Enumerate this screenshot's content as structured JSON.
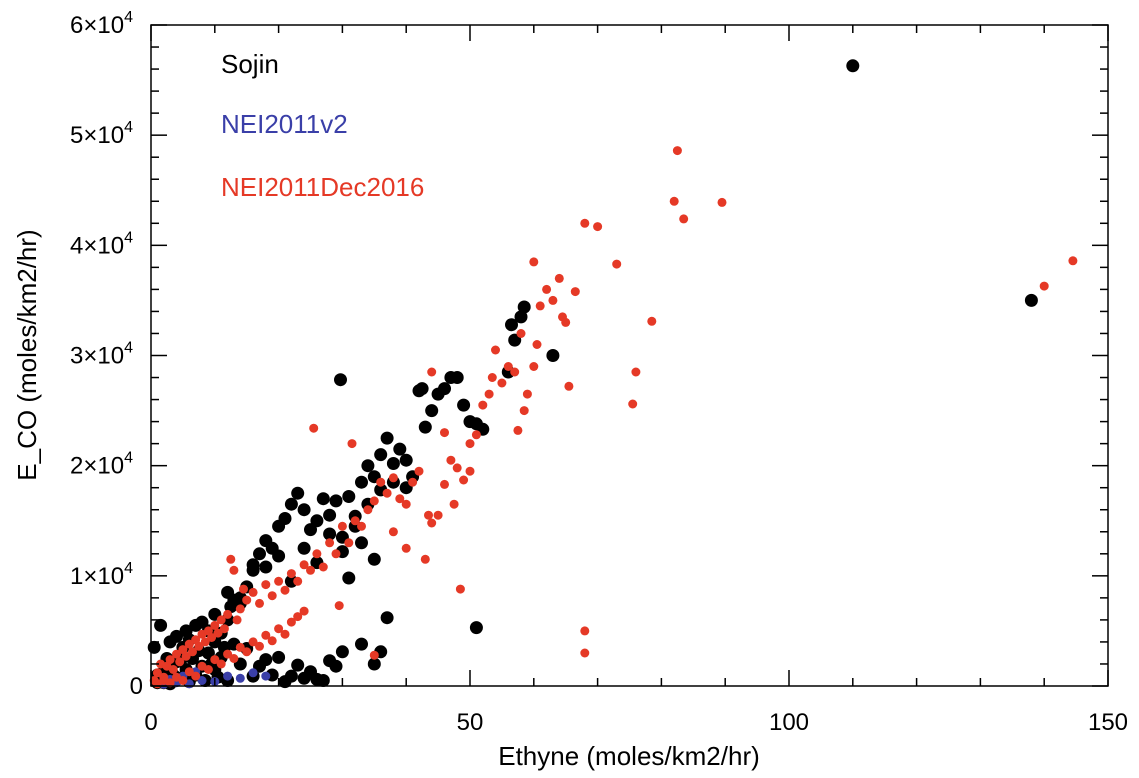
{
  "chart_data": {
    "type": "scatter",
    "title": "",
    "xlabel": "Ethyne (moles/km2/hr)",
    "ylabel": "E_CO (moles/km2/hr)",
    "xlim": [
      0,
      150
    ],
    "ylim": [
      0,
      60000
    ],
    "grid": false,
    "legend_placement": "top-left",
    "x_ticks": [
      {
        "value": 0,
        "label": "0"
      },
      {
        "value": 50,
        "label": "50"
      },
      {
        "value": 100,
        "label": "100"
      },
      {
        "value": 150,
        "label": "150"
      }
    ],
    "y_ticks": [
      {
        "value": 0,
        "mantissa": "0",
        "exp": ""
      },
      {
        "value": 10000,
        "mantissa": "1×10",
        "exp": "4"
      },
      {
        "value": 20000,
        "mantissa": "2×10",
        "exp": "4"
      },
      {
        "value": 30000,
        "mantissa": "3×10",
        "exp": "4"
      },
      {
        "value": 40000,
        "mantissa": "4×10",
        "exp": "4"
      },
      {
        "value": 50000,
        "mantissa": "5×10",
        "exp": "4"
      },
      {
        "value": 60000,
        "mantissa": "6×10",
        "exp": "4"
      }
    ],
    "series": [
      {
        "name": "Sojin",
        "color": "#000000",
        "marker": "large-dot",
        "points": [
          [
            0.5,
            3500
          ],
          [
            1.5,
            5500
          ],
          [
            2.5,
            2500
          ],
          [
            3,
            4000
          ],
          [
            4,
            4500
          ],
          [
            5,
            3500
          ],
          [
            5.5,
            5000
          ],
          [
            6,
            4200
          ],
          [
            7,
            5500
          ],
          [
            8,
            5800
          ],
          [
            9,
            5000
          ],
          [
            10,
            4000
          ],
          [
            11,
            4800
          ],
          [
            12,
            6000
          ],
          [
            12.5,
            7200
          ],
          [
            13,
            7800
          ],
          [
            14,
            8000
          ],
          [
            15,
            9000
          ],
          [
            16,
            10500
          ],
          [
            17,
            12000
          ],
          [
            18,
            13200
          ],
          [
            19,
            12500
          ],
          [
            20,
            14500
          ],
          [
            21,
            15200
          ],
          [
            22,
            16500
          ],
          [
            23,
            17500
          ],
          [
            24,
            16000
          ],
          [
            25,
            14200
          ],
          [
            26,
            15000
          ],
          [
            27,
            17000
          ],
          [
            28,
            15500
          ],
          [
            29,
            16800
          ],
          [
            29.7,
            27800
          ],
          [
            30,
            13500
          ],
          [
            31,
            17200
          ],
          [
            32,
            15400
          ],
          [
            33,
            18500
          ],
          [
            34,
            20000
          ],
          [
            35,
            19000
          ],
          [
            36,
            21000
          ],
          [
            37,
            22500
          ],
          [
            38,
            20200
          ],
          [
            39,
            21500
          ],
          [
            40,
            20500
          ],
          [
            41,
            19000
          ],
          [
            42,
            26800
          ],
          [
            42.5,
            27000
          ],
          [
            43,
            23500
          ],
          [
            44,
            25000
          ],
          [
            45,
            26500
          ],
          [
            46,
            27000
          ],
          [
            47,
            28000
          ],
          [
            48,
            28000
          ],
          [
            49,
            25500
          ],
          [
            50,
            24000
          ],
          [
            51,
            23800
          ],
          [
            52,
            23300
          ],
          [
            56,
            28500
          ],
          [
            56.5,
            32800
          ],
          [
            57,
            31400
          ],
          [
            58,
            33500
          ],
          [
            58.5,
            34400
          ],
          [
            63,
            30000
          ],
          [
            110,
            56300
          ],
          [
            138,
            35000
          ],
          [
            1,
            300
          ],
          [
            1,
            1000
          ],
          [
            1.5,
            500
          ],
          [
            2,
            1300
          ],
          [
            2,
            300
          ],
          [
            2.5,
            800
          ],
          [
            3,
            200
          ],
          [
            3,
            1700
          ],
          [
            3.5,
            1000
          ],
          [
            4,
            2200
          ],
          [
            4.5,
            700
          ],
          [
            5,
            2600
          ],
          [
            5.5,
            1500
          ],
          [
            6,
            400
          ],
          [
            6.5,
            2500
          ],
          [
            7,
            1000
          ],
          [
            7.5,
            3200
          ],
          [
            8,
            1800
          ],
          [
            8.5,
            500
          ],
          [
            9,
            3000
          ],
          [
            9.5,
            2000
          ],
          [
            10,
            1500
          ],
          [
            10.5,
            800
          ],
          [
            11,
            2600
          ],
          [
            11.5,
            3500
          ],
          [
            12,
            500
          ],
          [
            13,
            3800
          ],
          [
            14,
            2000
          ],
          [
            15,
            3400
          ],
          [
            16,
            900
          ],
          [
            17,
            1800
          ],
          [
            18,
            2400
          ],
          [
            19,
            1000
          ],
          [
            20,
            2600
          ],
          [
            21,
            400
          ],
          [
            22,
            900
          ],
          [
            23,
            1900
          ],
          [
            24,
            700
          ],
          [
            25,
            1300
          ],
          [
            26,
            600
          ],
          [
            27,
            500
          ],
          [
            28,
            2300
          ],
          [
            29,
            1800
          ],
          [
            30,
            3100
          ],
          [
            33,
            3800
          ],
          [
            35,
            2000
          ],
          [
            36,
            3100
          ],
          [
            37,
            6200
          ],
          [
            51,
            5300
          ],
          [
            10,
            6500
          ],
          [
            12,
            8500
          ],
          [
            14,
            7500
          ],
          [
            16,
            11000
          ],
          [
            18,
            10800
          ],
          [
            20,
            11800
          ],
          [
            22,
            9500
          ],
          [
            24,
            12500
          ],
          [
            26,
            11200
          ],
          [
            28,
            13800
          ],
          [
            30,
            12200
          ],
          [
            32,
            14500
          ],
          [
            34,
            16500
          ],
          [
            36,
            17800
          ],
          [
            38,
            18500
          ],
          [
            40,
            18000
          ],
          [
            35,
            11500
          ],
          [
            33,
            13000
          ],
          [
            31,
            9800
          ]
        ]
      },
      {
        "name": "NEI2011v2",
        "color": "#3a3fa8",
        "marker": "dot",
        "points": [
          [
            2,
            150
          ],
          [
            4,
            300
          ],
          [
            6,
            200
          ],
          [
            8,
            500
          ],
          [
            10,
            400
          ],
          [
            12,
            900
          ],
          [
            14,
            700
          ],
          [
            16,
            1200
          ],
          [
            18,
            900
          ],
          [
            3,
            600
          ],
          [
            5,
            900
          ],
          [
            7,
            1300
          ]
        ]
      },
      {
        "name": "NEI2011Dec2016",
        "color": "#e53926",
        "marker": "dot",
        "points": [
          [
            0.5,
            500
          ],
          [
            1,
            1200
          ],
          [
            1.5,
            2000
          ],
          [
            2,
            800
          ],
          [
            2.5,
            1800
          ],
          [
            3,
            2400
          ],
          [
            3.5,
            1500
          ],
          [
            4,
            2900
          ],
          [
            4.5,
            2200
          ],
          [
            5,
            3300
          ],
          [
            5.5,
            2700
          ],
          [
            6,
            3800
          ],
          [
            6.5,
            3100
          ],
          [
            7,
            4200
          ],
          [
            7.5,
            3600
          ],
          [
            8,
            4700
          ],
          [
            8.5,
            4000
          ],
          [
            9,
            5000
          ],
          [
            9.5,
            4400
          ],
          [
            10,
            5500
          ],
          [
            10.5,
            4800
          ],
          [
            11,
            6000
          ],
          [
            11.5,
            5200
          ],
          [
            12,
            6500
          ],
          [
            12.5,
            11500
          ],
          [
            13,
            10500
          ],
          [
            13.5,
            6000
          ],
          [
            14,
            7000
          ],
          [
            14.5,
            8800
          ],
          [
            15,
            7800
          ],
          [
            16,
            8500
          ],
          [
            17,
            7500
          ],
          [
            18,
            9200
          ],
          [
            19,
            8200
          ],
          [
            20,
            9500
          ],
          [
            21,
            8700
          ],
          [
            22,
            10200
          ],
          [
            23,
            9500
          ],
          [
            24,
            11000
          ],
          [
            25,
            10500
          ],
          [
            25.5,
            23400
          ],
          [
            26,
            12000
          ],
          [
            27,
            10800
          ],
          [
            28,
            13000
          ],
          [
            29,
            12000
          ],
          [
            29.5,
            7300
          ],
          [
            30,
            14500
          ],
          [
            31,
            13000
          ],
          [
            31.5,
            22000
          ],
          [
            32,
            15000
          ],
          [
            33,
            14500
          ],
          [
            34,
            16000
          ],
          [
            35,
            16800
          ],
          [
            36,
            18500
          ],
          [
            37,
            17500
          ],
          [
            38,
            18900
          ],
          [
            39,
            17000
          ],
          [
            40,
            16500
          ],
          [
            41,
            18500
          ],
          [
            42,
            19500
          ],
          [
            43,
            11500
          ],
          [
            43.5,
            15500
          ],
          [
            44,
            14800
          ],
          [
            45,
            15500
          ],
          [
            46,
            18300
          ],
          [
            47,
            20500
          ],
          [
            47.5,
            16500
          ],
          [
            48,
            19800
          ],
          [
            48.5,
            8800
          ],
          [
            49,
            18700
          ],
          [
            50,
            22000
          ],
          [
            51,
            22800
          ],
          [
            52,
            25500
          ],
          [
            53,
            26500
          ],
          [
            53.5,
            28000
          ],
          [
            54,
            30500
          ],
          [
            55,
            27500
          ],
          [
            56,
            29000
          ],
          [
            57,
            28500
          ],
          [
            58,
            32000
          ],
          [
            58.5,
            25000
          ],
          [
            59,
            26500
          ],
          [
            60,
            29000
          ],
          [
            60.5,
            31000
          ],
          [
            61,
            34500
          ],
          [
            62,
            36000
          ],
          [
            63,
            35000
          ],
          [
            64,
            37000
          ],
          [
            64.5,
            33500
          ],
          [
            65,
            33000
          ],
          [
            65.5,
            27200
          ],
          [
            66.5,
            35800
          ],
          [
            68,
            42000
          ],
          [
            70,
            41700
          ],
          [
            73,
            38300
          ],
          [
            75.5,
            25600
          ],
          [
            76,
            28500
          ],
          [
            78.5,
            33100
          ],
          [
            82,
            44000
          ],
          [
            82.5,
            48600
          ],
          [
            83.5,
            42400
          ],
          [
            89.5,
            43900
          ],
          [
            140,
            36300
          ],
          [
            144.5,
            38600
          ],
          [
            68,
            5000
          ],
          [
            68,
            3000
          ],
          [
            35,
            2800
          ],
          [
            60,
            38500
          ],
          [
            57.5,
            23200
          ],
          [
            50,
            19500
          ],
          [
            46,
            23000
          ],
          [
            44,
            28500
          ],
          [
            40,
            12500
          ],
          [
            38,
            14000
          ],
          [
            1,
            200
          ],
          [
            2,
            500
          ],
          [
            3,
            300
          ],
          [
            4,
            800
          ],
          [
            5,
            500
          ],
          [
            6,
            1300
          ],
          [
            7,
            900
          ],
          [
            8,
            1800
          ],
          [
            9,
            1500
          ],
          [
            10,
            2400
          ],
          [
            11,
            2000
          ],
          [
            12,
            2900
          ],
          [
            13,
            2500
          ],
          [
            14,
            3500
          ],
          [
            15,
            3100
          ],
          [
            16,
            4000
          ],
          [
            17,
            3600
          ],
          [
            18,
            4600
          ],
          [
            19,
            4100
          ],
          [
            20,
            5200
          ],
          [
            21,
            4700
          ],
          [
            22,
            5800
          ],
          [
            23,
            6300
          ],
          [
            24,
            6800
          ]
        ]
      }
    ]
  }
}
